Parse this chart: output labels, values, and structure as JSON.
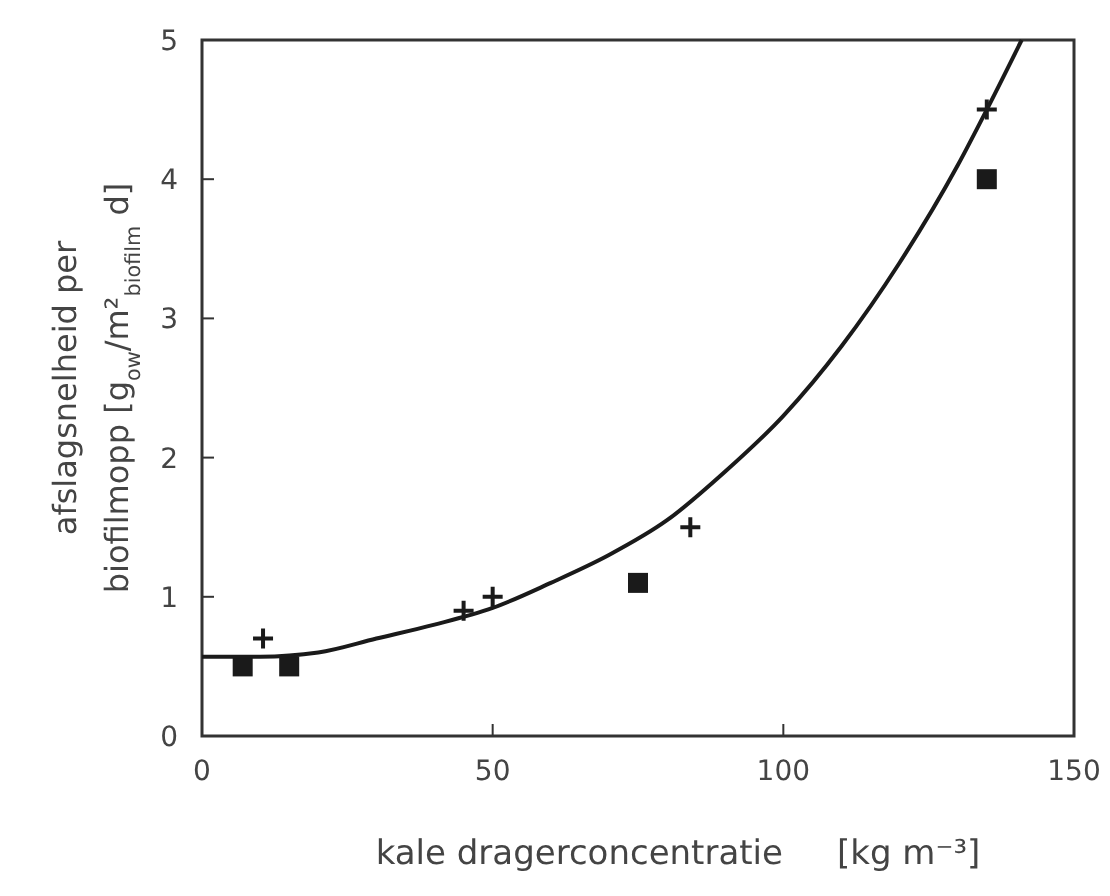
{
  "chart_data": {
    "type": "scatter",
    "xlabel": "kale dragerconcentratie     [kg m⁻³]",
    "ylabel": "afslagsnelheid per\nbiofilmopp [g$_{ow}$/m²$_{biofilm}$ d]",
    "xlim": [
      0,
      150
    ],
    "xticks": [
      0,
      50,
      100,
      150
    ],
    "ylim": [
      0,
      5
    ],
    "yticks": [
      0,
      1,
      2,
      3,
      4,
      5
    ],
    "grid": false,
    "series": [
      {
        "marker": "square",
        "color": "#1a1a1a",
        "x": [
          7,
          15,
          75,
          135
        ],
        "values": [
          0.5,
          0.5,
          1.1,
          4.0
        ]
      },
      {
        "marker": "cross",
        "color": "#1a1a1a",
        "x": [
          10.5,
          45,
          50,
          84,
          135
        ],
        "values": [
          0.7,
          0.9,
          1.0,
          1.5,
          4.5
        ]
      },
      {
        "type": "line",
        "marker": "none",
        "color": "#1a1a1a",
        "x": [
          0,
          10,
          20,
          30,
          40,
          50,
          60,
          70,
          80,
          90,
          100,
          110,
          120,
          130,
          135,
          141
        ],
        "values": [
          0.57,
          0.57,
          0.6,
          0.7,
          0.8,
          0.92,
          1.1,
          1.3,
          1.55,
          1.9,
          2.3,
          2.8,
          3.4,
          4.1,
          4.5,
          5
        ]
      }
    ]
  }
}
